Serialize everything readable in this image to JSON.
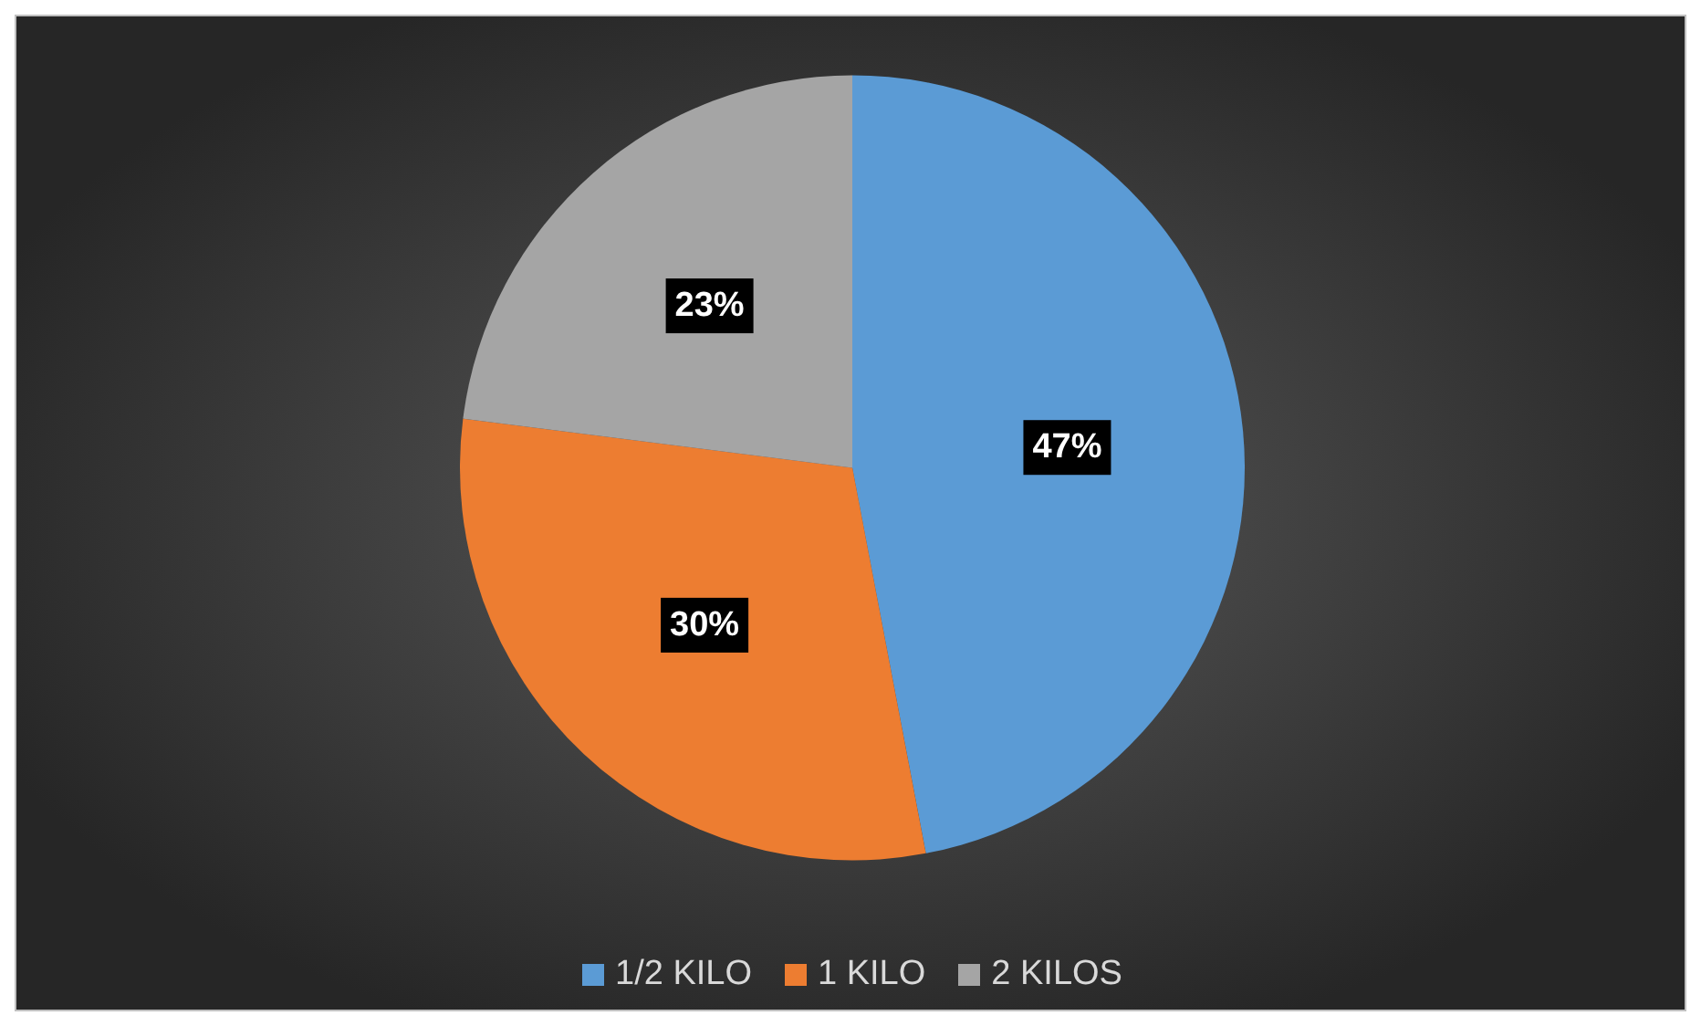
{
  "chart_data": {
    "type": "pie",
    "categories": [
      "1/2 KILO",
      "1 KILO",
      "2 KILOS"
    ],
    "values": [
      47,
      30,
      23
    ],
    "colors": [
      "#5b9bd5",
      "#ed7d31",
      "#a5a5a5"
    ],
    "value_labels": [
      "47%",
      "30%",
      "23%"
    ],
    "legend": "bottom"
  }
}
